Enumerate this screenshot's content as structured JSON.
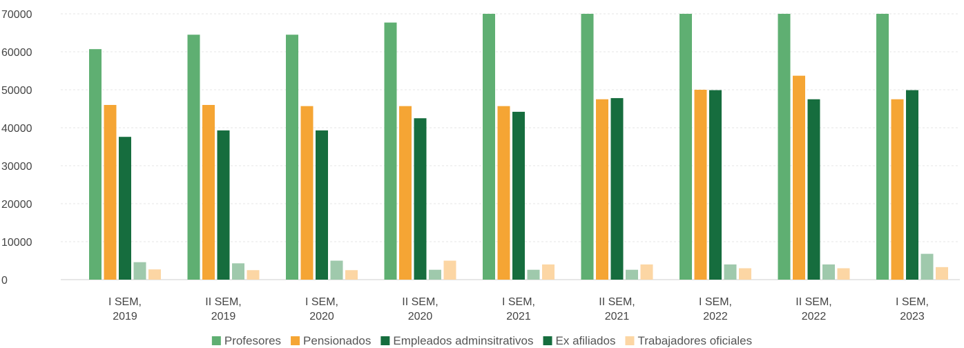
{
  "chart_data": {
    "type": "bar",
    "categories": [
      [
        "I SEM,",
        "2019"
      ],
      [
        "II SEM,",
        "2019"
      ],
      [
        "I SEM,",
        "2020"
      ],
      [
        "II SEM,",
        "2020"
      ],
      [
        "I SEM,",
        "2021"
      ],
      [
        "II SEM,",
        "2021"
      ],
      [
        "I SEM,",
        "2022"
      ],
      [
        "II SEM,",
        "2022"
      ],
      [
        "I SEM,",
        "2023"
      ]
    ],
    "ylim": [
      0,
      70000
    ],
    "yticks": [
      "0",
      "10000",
      "20000",
      "30000",
      "40000",
      "50000",
      "60000",
      "70000"
    ],
    "legend_position": "bottom-center",
    "grid": true,
    "series": [
      {
        "name": "Profesores",
        "color": "#5faf72",
        "values": [
          60700,
          64500,
          64500,
          67700,
          70000,
          70000,
          70000,
          70000,
          70000
        ]
      },
      {
        "name": "Pensionados",
        "color": "#f5a534",
        "values": [
          46000,
          46000,
          45700,
          45700,
          45700,
          47500,
          50000,
          53700,
          47500
        ]
      },
      {
        "name": "Empleados adminsitrativos",
        "color": "#166d3e",
        "values": [
          37600,
          39300,
          39300,
          42500,
          44200,
          47800,
          49900,
          47500,
          49900
        ]
      },
      {
        "name": "Ex afiliados",
        "color": "#9fc9ac",
        "legend_color": "#166d3e",
        "values": [
          4600,
          4300,
          5000,
          2600,
          2600,
          2600,
          4000,
          4000,
          6800
        ]
      },
      {
        "name": "Trabajadores oficiales",
        "color": "#fcd6a4",
        "values": [
          2700,
          2500,
          2500,
          5000,
          4000,
          4000,
          3000,
          3000,
          3300
        ]
      }
    ]
  }
}
